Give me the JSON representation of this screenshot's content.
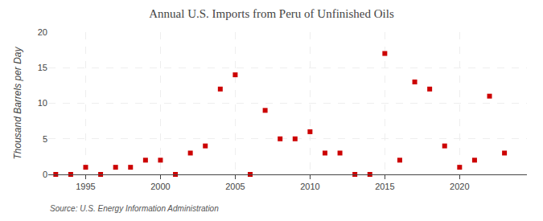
{
  "chart_data": {
    "type": "scatter",
    "title": "Annual U.S. Imports from Peru of Unfinished Oils",
    "ylabel": "Thousand Barrels per Day",
    "annotations": [
      "Source: U.S. Energy Information Administration"
    ],
    "x": [
      1993,
      1994,
      1995,
      1996,
      1997,
      1998,
      1999,
      2000,
      2001,
      2002,
      2003,
      2004,
      2005,
      2006,
      2007,
      2008,
      2009,
      2010,
      2011,
      2012,
      2013,
      2014,
      2015,
      2016,
      2017,
      2018,
      2019,
      2020,
      2021,
      2022,
      2023
    ],
    "values": [
      0,
      0,
      1,
      0,
      1,
      1,
      2,
      2,
      0,
      3,
      4,
      12,
      14,
      0,
      9,
      5,
      5,
      6,
      3,
      3,
      0,
      0,
      17,
      2,
      13,
      12,
      4,
      1,
      2,
      11,
      3
    ],
    "color": "#cc0000",
    "marker": "square",
    "xlim": [
      1992.5,
      2024.5
    ],
    "ylim": [
      0,
      20
    ],
    "xticks": [
      1995,
      2000,
      2005,
      2010,
      2015,
      2020
    ],
    "yticks": [
      0,
      5,
      10,
      15,
      20
    ],
    "grid": true
  }
}
